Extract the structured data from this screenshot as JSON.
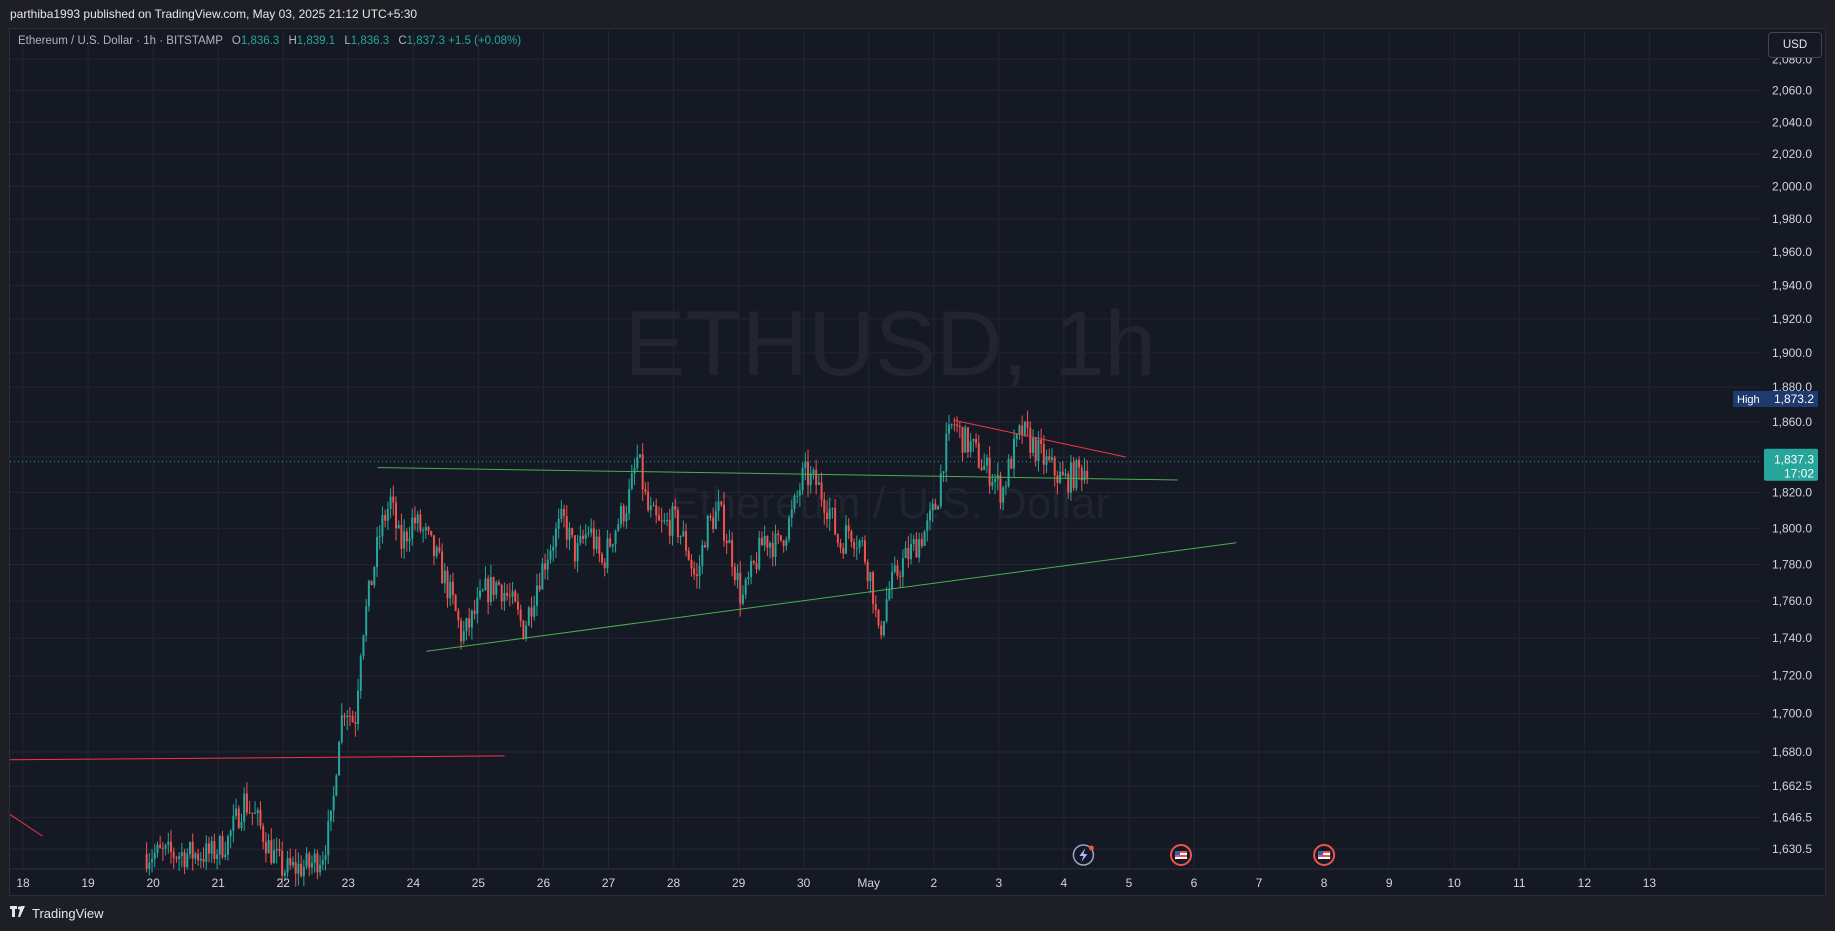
{
  "header": {
    "published_line": "parthiba1993 published on TradingView.com, May 03, 2025 21:12 UTC+5:30"
  },
  "legend": {
    "symbol_line": "Ethereum / U.S. Dollar · 1h · BITSTAMP",
    "open_label": "O",
    "open": "1,836.3",
    "high_label": "H",
    "high": "1,839.1",
    "low_label": "L",
    "low": "1,836.3",
    "close_label": "C",
    "close": "1,837.3",
    "change": "+1.5 (+0.08%)"
  },
  "currency_button": "USD",
  "watermark": {
    "symbol": "ETHUSD, 1h",
    "name": "Ethereum / U.S. Dollar"
  },
  "footer": {
    "brand": "TradingView",
    "logo_icon": "tradingview-logo-icon"
  },
  "colors": {
    "background": "#151924",
    "up": "#26a69a",
    "down": "#ef5350",
    "grid": "#232632",
    "trend_red": "#f23645",
    "trend_green": "#4caf50"
  },
  "chart_data": {
    "type": "candlestick",
    "symbol": "ETHUSD",
    "interval": "1h",
    "exchange": "BITSTAMP",
    "y_scale": "log",
    "ylim": [
      1621,
      2095
    ],
    "y_ticks": [
      2080,
      2060,
      2040,
      2020,
      2000,
      1980,
      1960,
      1940,
      1920,
      1900,
      1880,
      1860,
      1840,
      1820,
      1800,
      1780,
      1760,
      1740,
      1720,
      1700,
      1680,
      1662.5,
      1646.5,
      1630.5
    ],
    "y_tick_labels": [
      "2,080.0",
      "2,060.0",
      "2,040.0",
      "2,020.0",
      "2,000.0",
      "1,980.0",
      "1,960.0",
      "1,940.0",
      "1,920.0",
      "1,900.0",
      "1,880.0",
      "1,860.0",
      "1,840.0",
      "1,820.0",
      "1,800.0",
      "1,780.0",
      "1,760.0",
      "1,740.0",
      "1,720.0",
      "1,700.0",
      "1,680.0",
      "1,662.5",
      "1,646.5",
      "1,630.5"
    ],
    "x_ticks": [
      {
        "day": 18,
        "label": "18"
      },
      {
        "day": 19,
        "label": "19"
      },
      {
        "day": 20,
        "label": "20"
      },
      {
        "day": 21,
        "label": "21"
      },
      {
        "day": 22,
        "label": "22"
      },
      {
        "day": 23,
        "label": "23"
      },
      {
        "day": 24,
        "label": "24"
      },
      {
        "day": 25,
        "label": "25"
      },
      {
        "day": 26,
        "label": "26"
      },
      {
        "day": 27,
        "label": "27"
      },
      {
        "day": 28,
        "label": "28"
      },
      {
        "day": 29,
        "label": "29"
      },
      {
        "day": 30,
        "label": "30"
      },
      {
        "day": 31,
        "label": "May"
      },
      {
        "day": 32,
        "label": "2"
      },
      {
        "day": 33,
        "label": "3"
      },
      {
        "day": 34,
        "label": "4"
      },
      {
        "day": 35,
        "label": "5"
      },
      {
        "day": 36,
        "label": "6"
      },
      {
        "day": 37,
        "label": "7"
      },
      {
        "day": 38,
        "label": "8"
      },
      {
        "day": 39,
        "label": "9"
      },
      {
        "day": 40,
        "label": "10"
      },
      {
        "day": 41,
        "label": "11"
      },
      {
        "day": 42,
        "label": "12"
      },
      {
        "day": 43,
        "label": "13"
      }
    ],
    "xlim_days": [
      17.8,
      44.7
    ],
    "price_path": [
      [
        19.9,
        1628
      ],
      [
        20.9,
        1628
      ],
      [
        21.15,
        1635
      ],
      [
        21.4,
        1655
      ],
      [
        21.6,
        1645
      ],
      [
        21.8,
        1630
      ],
      [
        22.0,
        1620
      ],
      [
        22.4,
        1622
      ],
      [
        22.6,
        1628
      ],
      [
        22.75,
        1645
      ],
      [
        22.85,
        1690
      ],
      [
        22.95,
        1705
      ],
      [
        23.1,
        1695
      ],
      [
        23.2,
        1740
      ],
      [
        23.35,
        1770
      ],
      [
        23.5,
        1800
      ],
      [
        23.65,
        1815
      ],
      [
        23.8,
        1790
      ],
      [
        24.0,
        1805
      ],
      [
        24.2,
        1795
      ],
      [
        24.4,
        1780
      ],
      [
        24.6,
        1760
      ],
      [
        24.75,
        1740
      ],
      [
        24.9,
        1750
      ],
      [
        25.1,
        1765
      ],
      [
        25.3,
        1770
      ],
      [
        25.5,
        1760
      ],
      [
        25.7,
        1745
      ],
      [
        25.9,
        1770
      ],
      [
        26.1,
        1790
      ],
      [
        26.3,
        1805
      ],
      [
        26.5,
        1785
      ],
      [
        26.7,
        1800
      ],
      [
        26.9,
        1780
      ],
      [
        27.1,
        1800
      ],
      [
        27.3,
        1815
      ],
      [
        27.45,
        1840
      ],
      [
        27.6,
        1810
      ],
      [
        27.8,
        1800
      ],
      [
        28.0,
        1805
      ],
      [
        28.2,
        1790
      ],
      [
        28.35,
        1770
      ],
      [
        28.5,
        1800
      ],
      [
        28.7,
        1810
      ],
      [
        28.9,
        1785
      ],
      [
        29.05,
        1760
      ],
      [
        29.2,
        1775
      ],
      [
        29.4,
        1795
      ],
      [
        29.6,
        1790
      ],
      [
        29.8,
        1805
      ],
      [
        30.0,
        1830
      ],
      [
        30.2,
        1825
      ],
      [
        30.4,
        1810
      ],
      [
        30.55,
        1790
      ],
      [
        30.7,
        1800
      ],
      [
        30.9,
        1790
      ],
      [
        31.05,
        1770
      ],
      [
        31.15,
        1740
      ],
      [
        31.3,
        1765
      ],
      [
        31.5,
        1780
      ],
      [
        31.7,
        1790
      ],
      [
        31.9,
        1800
      ],
      [
        32.05,
        1815
      ],
      [
        32.15,
        1840
      ],
      [
        32.3,
        1860
      ],
      [
        32.45,
        1850
      ],
      [
        32.6,
        1845
      ],
      [
        32.75,
        1835
      ],
      [
        32.9,
        1830
      ],
      [
        33.05,
        1820
      ],
      [
        33.2,
        1840
      ],
      [
        33.35,
        1855
      ],
      [
        33.5,
        1848
      ],
      [
        33.7,
        1838
      ],
      [
        33.85,
        1832
      ],
      [
        34.0,
        1826
      ],
      [
        34.15,
        1830
      ],
      [
        34.3,
        1833
      ],
      [
        34.4,
        1837.3
      ]
    ],
    "current_price": "1,837.3",
    "countdown": "17:02",
    "high_marker": {
      "label": "High",
      "value": "1,873.2"
    },
    "trendlines": [
      {
        "color": "red",
        "points": [
          [
            17.8,
            1676
          ],
          [
            25.4,
            1678
          ]
        ]
      },
      {
        "color": "red",
        "points": [
          [
            17.8,
            1648
          ],
          [
            18.3,
            1637
          ]
        ]
      },
      {
        "color": "green",
        "points": [
          [
            23.45,
            1834
          ],
          [
            35.75,
            1827
          ]
        ]
      },
      {
        "color": "green",
        "points": [
          [
            24.2,
            1733
          ],
          [
            36.65,
            1792
          ]
        ]
      },
      {
        "color": "red",
        "points": [
          [
            32.3,
            1861
          ],
          [
            34.95,
            1840
          ]
        ]
      }
    ],
    "event_icons": [
      {
        "day": 34.3,
        "name": "earnings-flash-icon"
      },
      {
        "day": 35.8,
        "name": "us-flag-event-icon"
      },
      {
        "day": 38.0,
        "name": "us-flag-event-icon"
      }
    ]
  }
}
